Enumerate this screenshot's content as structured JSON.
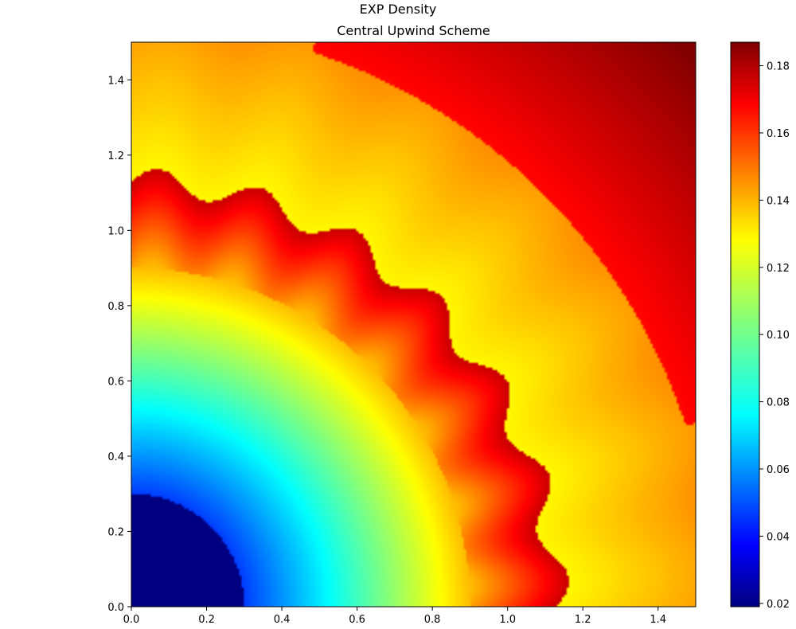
{
  "figure": {
    "suptitle": "EXP Density",
    "title": "Central Upwind Scheme"
  },
  "chart_data": {
    "type": "heatmap",
    "colormap": "jet",
    "title": "Central Upwind Scheme",
    "suptitle": "EXP Density",
    "xlabel": "",
    "ylabel": "",
    "xlim": [
      0.0,
      1.5
    ],
    "ylim": [
      0.0,
      1.5
    ],
    "x_ticks": [
      "0.0",
      "0.2",
      "0.4",
      "0.6",
      "0.8",
      "1.0",
      "1.2",
      "1.4"
    ],
    "y_ticks": [
      "0.0",
      "0.2",
      "0.4",
      "0.6",
      "0.8",
      "1.0",
      "1.2",
      "1.4"
    ],
    "x_tick_values": [
      0.0,
      0.2,
      0.4,
      0.6,
      0.8,
      1.0,
      1.2,
      1.4
    ],
    "y_tick_values": [
      0.0,
      0.2,
      0.4,
      0.6,
      0.8,
      1.0,
      1.2,
      1.4
    ],
    "colorbar": {
      "range": [
        0.019,
        0.187
      ],
      "tick_values": [
        0.02,
        0.04,
        0.06,
        0.08,
        0.1,
        0.12,
        0.14,
        0.16,
        0.18
      ],
      "tick_labels": [
        "0.02",
        "0.04",
        "0.06",
        "0.08",
        "0.10",
        "0.12",
        "0.14",
        "0.16",
        "0.18"
      ]
    },
    "field": {
      "description_regions": [
        {
          "region": "core",
          "r_max": 0.3,
          "value": 0.019
        },
        {
          "region": "rarefaction",
          "r_range": [
            0.3,
            1.15
          ],
          "value_range": [
            0.05,
            0.13
          ]
        },
        {
          "region": "shock_shell",
          "r_range": [
            0.85,
            1.17
          ],
          "value": 0.17
        },
        {
          "region": "outer",
          "r_range": [
            1.17,
            2.12
          ],
          "value_range": [
            0.12,
            0.16
          ]
        },
        {
          "region": "corner_wedge",
          "angle_deg_range": [
            15,
            75
          ],
          "r_min": 1.5,
          "value": 0.185
        }
      ]
    }
  }
}
